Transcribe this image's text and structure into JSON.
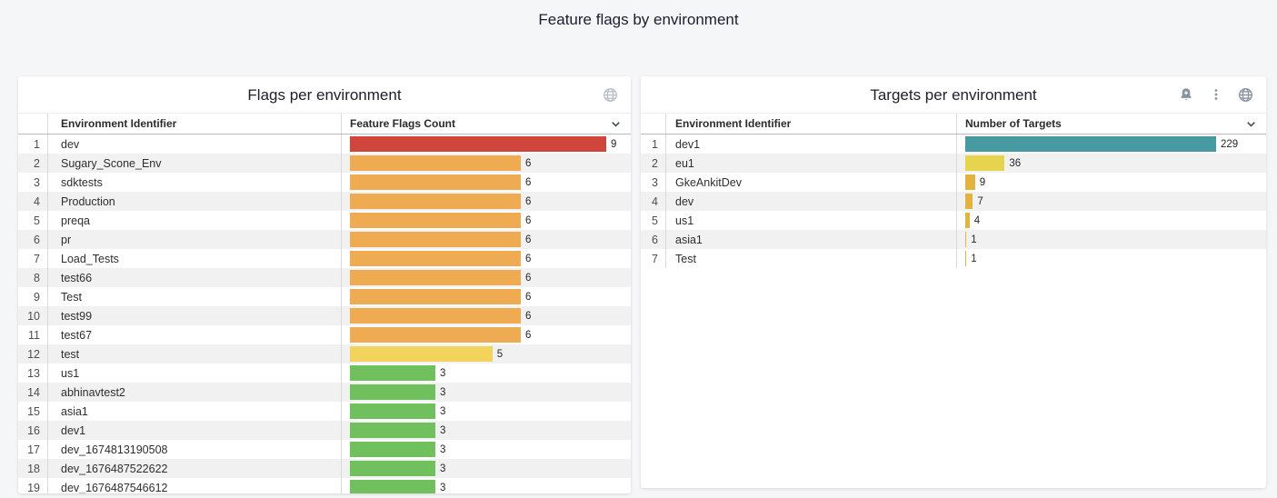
{
  "page": {
    "title": "Feature flags by environment",
    "background_color": "#f5f6f8"
  },
  "panels": [
    {
      "title": "Flags per environment",
      "icons": [
        "globe-icon"
      ],
      "columns": {
        "name": "Environment Identifier",
        "value": "Feature Flags Count"
      },
      "rows": [
        {
          "rank": 1,
          "name": "dev",
          "value": 9,
          "color": "#d0453c"
        },
        {
          "rank": 2,
          "name": "Sugary_Scone_Env",
          "value": 6,
          "color": "#eeab52"
        },
        {
          "rank": 3,
          "name": "sdktests",
          "value": 6,
          "color": "#eeab52"
        },
        {
          "rank": 4,
          "name": "Production",
          "value": 6,
          "color": "#eeab52"
        },
        {
          "rank": 5,
          "name": "preqa",
          "value": 6,
          "color": "#eeab52"
        },
        {
          "rank": 6,
          "name": "pr",
          "value": 6,
          "color": "#eeab52"
        },
        {
          "rank": 7,
          "name": "Load_Tests",
          "value": 6,
          "color": "#eeab52"
        },
        {
          "rank": 8,
          "name": "test66",
          "value": 6,
          "color": "#eeab52"
        },
        {
          "rank": 9,
          "name": "Test",
          "value": 6,
          "color": "#eeab52"
        },
        {
          "rank": 10,
          "name": "test99",
          "value": 6,
          "color": "#eeab52"
        },
        {
          "rank": 11,
          "name": "test67",
          "value": 6,
          "color": "#eeab52"
        },
        {
          "rank": 12,
          "name": "test",
          "value": 5,
          "color": "#f2d35b"
        },
        {
          "rank": 13,
          "name": "us1",
          "value": 3,
          "color": "#70c05e"
        },
        {
          "rank": 14,
          "name": "abhinavtest2",
          "value": 3,
          "color": "#70c05e"
        },
        {
          "rank": 15,
          "name": "asia1",
          "value": 3,
          "color": "#70c05e"
        },
        {
          "rank": 16,
          "name": "dev1",
          "value": 3,
          "color": "#70c05e"
        },
        {
          "rank": 17,
          "name": "dev_1674813190508",
          "value": 3,
          "color": "#70c05e"
        },
        {
          "rank": 18,
          "name": "dev_1676487522622",
          "value": 3,
          "color": "#70c05e"
        },
        {
          "rank": 19,
          "name": "dev_1676487546612",
          "value": 3,
          "color": "#70c05e"
        }
      ]
    },
    {
      "title": "Targets per environment",
      "icons": [
        "bell-plus-icon",
        "kebab-menu-icon",
        "globe-icon"
      ],
      "columns": {
        "name": "Environment Identifier",
        "value": "Number of Targets"
      },
      "rows": [
        {
          "rank": 1,
          "name": "dev1",
          "value": 229,
          "color": "#479aa2"
        },
        {
          "rank": 2,
          "name": "eu1",
          "value": 36,
          "color": "#e7d44e"
        },
        {
          "rank": 3,
          "name": "GkeAnkitDev",
          "value": 9,
          "color": "#e2b43f"
        },
        {
          "rank": 4,
          "name": "dev",
          "value": 7,
          "color": "#e2b43f"
        },
        {
          "rank": 5,
          "name": "us1",
          "value": 4,
          "color": "#e2b43f"
        },
        {
          "rank": 6,
          "name": "asia1",
          "value": 1,
          "color": "#e2b43f"
        },
        {
          "rank": 7,
          "name": "Test",
          "value": 1,
          "color": "#e2b43f"
        }
      ]
    }
  ],
  "chart_data": [
    {
      "type": "bar",
      "orientation": "horizontal",
      "title": "Flags per environment",
      "xlabel": "Feature Flags Count",
      "ylabel": "Environment Identifier",
      "xlim": [
        0,
        9
      ],
      "grid": false,
      "value_labels": true,
      "categories": [
        "dev",
        "Sugary_Scone_Env",
        "sdktests",
        "Production",
        "preqa",
        "pr",
        "Load_Tests",
        "test66",
        "Test",
        "test99",
        "test67",
        "test",
        "us1",
        "abhinavtest2",
        "asia1",
        "dev1",
        "dev_1674813190508",
        "dev_1676487522622",
        "dev_1676487546612"
      ],
      "values": [
        9,
        6,
        6,
        6,
        6,
        6,
        6,
        6,
        6,
        6,
        6,
        5,
        3,
        3,
        3,
        3,
        3,
        3,
        3
      ],
      "bar_colors": [
        "#d0453c",
        "#eeab52",
        "#eeab52",
        "#eeab52",
        "#eeab52",
        "#eeab52",
        "#eeab52",
        "#eeab52",
        "#eeab52",
        "#eeab52",
        "#eeab52",
        "#f2d35b",
        "#70c05e",
        "#70c05e",
        "#70c05e",
        "#70c05e",
        "#70c05e",
        "#70c05e",
        "#70c05e"
      ]
    },
    {
      "type": "bar",
      "orientation": "horizontal",
      "title": "Targets per environment",
      "xlabel": "Number of Targets",
      "ylabel": "Environment Identifier",
      "xlim": [
        0,
        229
      ],
      "grid": false,
      "value_labels": true,
      "categories": [
        "dev1",
        "eu1",
        "GkeAnkitDev",
        "dev",
        "us1",
        "asia1",
        "Test"
      ],
      "values": [
        229,
        36,
        9,
        7,
        4,
        1,
        1
      ],
      "bar_colors": [
        "#479aa2",
        "#e7d44e",
        "#e2b43f",
        "#e2b43f",
        "#e2b43f",
        "#e2b43f",
        "#e2b43f"
      ]
    }
  ]
}
